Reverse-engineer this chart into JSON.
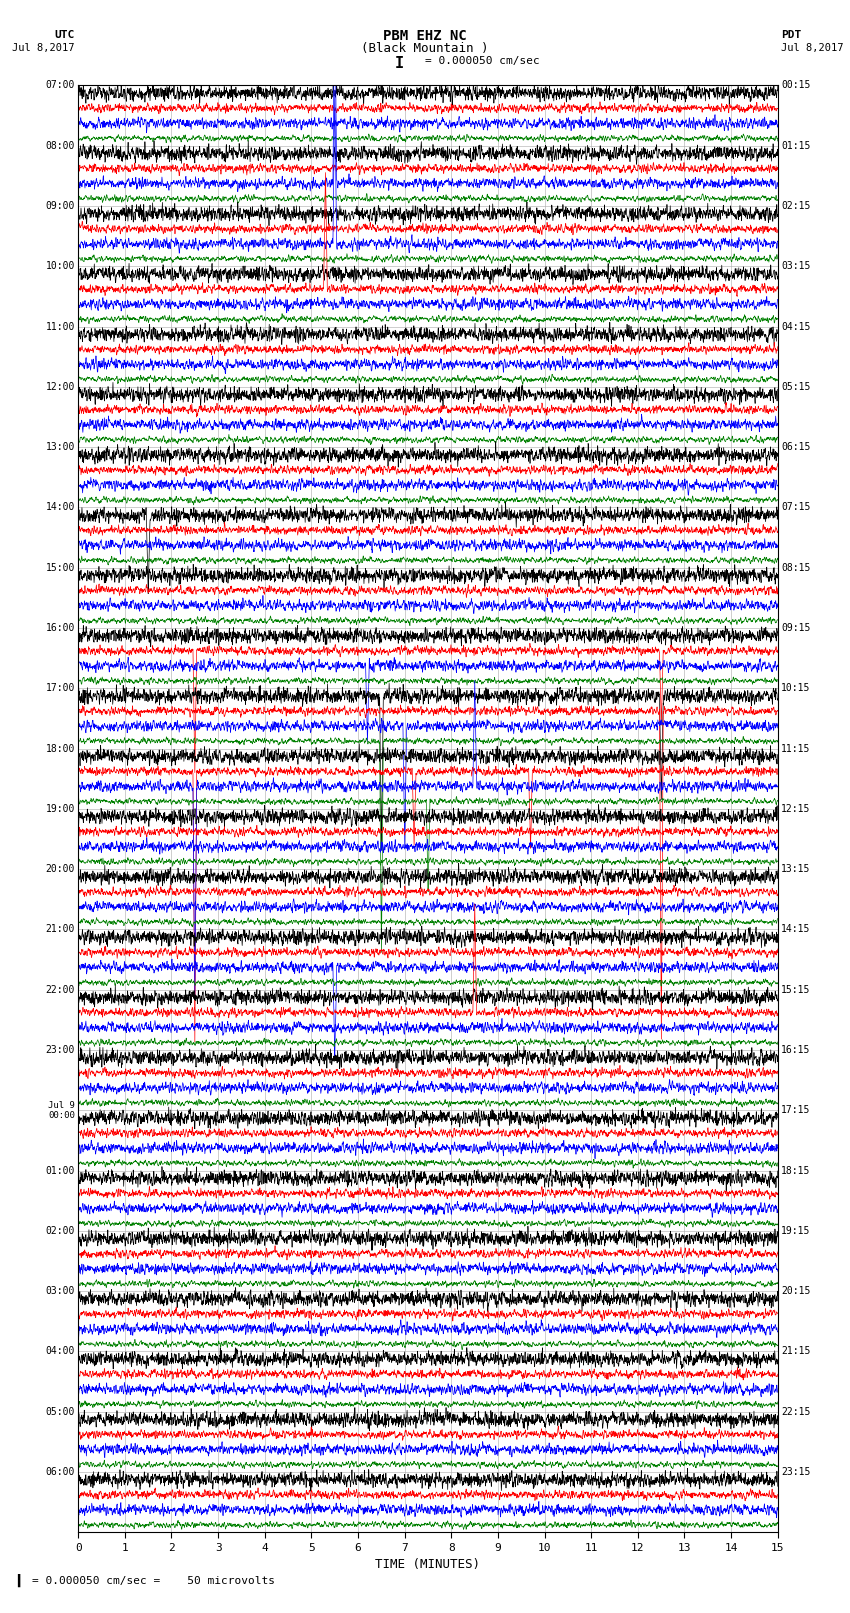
{
  "title_line1": "PBM EHZ NC",
  "title_line2": "(Black Mountain )",
  "title_line3": "I = 0.000050 cm/sec",
  "label_utc": "UTC",
  "label_pdt": "PDT",
  "date_left": "Jul 8,2017",
  "date_right": "Jul 8,2017",
  "xlabel": "TIME (MINUTES)",
  "footer": "= 0.000050 cm/sec =    50 microvolts",
  "xmin": 0,
  "xmax": 15,
  "xticks": [
    0,
    1,
    2,
    3,
    4,
    5,
    6,
    7,
    8,
    9,
    10,
    11,
    12,
    13,
    14,
    15
  ],
  "bg_color": "#ffffff",
  "trace_colors": [
    "black",
    "red",
    "blue",
    "green"
  ],
  "utc_times": [
    "07:00",
    "08:00",
    "09:00",
    "10:00",
    "11:00",
    "12:00",
    "13:00",
    "14:00",
    "15:00",
    "16:00",
    "17:00",
    "18:00",
    "19:00",
    "20:00",
    "21:00",
    "22:00",
    "23:00",
    "Jul 9\n00:00",
    "01:00",
    "02:00",
    "03:00",
    "04:00",
    "05:00",
    "06:00"
  ],
  "pdt_times": [
    "00:15",
    "01:15",
    "02:15",
    "03:15",
    "04:15",
    "05:15",
    "06:15",
    "07:15",
    "08:15",
    "09:15",
    "10:15",
    "11:15",
    "12:15",
    "13:15",
    "14:15",
    "15:15",
    "16:15",
    "17:15",
    "18:15",
    "19:15",
    "20:15",
    "21:15",
    "22:15",
    "23:15"
  ],
  "num_hour_rows": 24,
  "traces_per_hour": 4,
  "noise_amps": [
    0.32,
    0.22,
    0.28,
    0.18
  ],
  "spike_events": [
    {
      "hour": 1,
      "color_idx": 2,
      "time": 5.5,
      "amplitude": 14.0,
      "direction": 1
    },
    {
      "hour": 2,
      "color_idx": 2,
      "time": 5.5,
      "amplitude": 10.0,
      "direction": 1
    },
    {
      "hour": 3,
      "color_idx": 1,
      "time": 5.3,
      "amplitude": 8.0,
      "direction": 1
    },
    {
      "hour": 7,
      "color_idx": 0,
      "time": 1.5,
      "amplitude": -5.0,
      "direction": -1
    },
    {
      "hour": 9,
      "color_idx": 1,
      "time": 2.5,
      "amplitude": -8.0,
      "direction": -1
    },
    {
      "hour": 9,
      "color_idx": 2,
      "time": 6.2,
      "amplitude": -5.0,
      "direction": -1
    },
    {
      "hour": 9,
      "color_idx": 1,
      "time": 12.5,
      "amplitude": -5.0,
      "direction": -1
    },
    {
      "hour": 10,
      "color_idx": 3,
      "time": 6.5,
      "amplitude": -14.0,
      "direction": -1
    },
    {
      "hour": 10,
      "color_idx": 0,
      "time": 6.5,
      "amplitude": -10.0,
      "direction": -1
    },
    {
      "hour": 10,
      "color_idx": 2,
      "time": 7.0,
      "amplitude": -8.0,
      "direction": -1
    },
    {
      "hour": 11,
      "color_idx": 1,
      "time": 2.5,
      "amplitude": -18.0,
      "direction": -1
    },
    {
      "hour": 11,
      "color_idx": 2,
      "time": 2.5,
      "amplitude": -14.0,
      "direction": -1
    },
    {
      "hour": 11,
      "color_idx": 3,
      "time": 7.5,
      "amplitude": -6.0,
      "direction": -1
    },
    {
      "hour": 11,
      "color_idx": 1,
      "time": 7.2,
      "amplitude": -5.0,
      "direction": -1
    },
    {
      "hour": 11,
      "color_idx": 2,
      "time": 8.5,
      "amplitude": 7.0,
      "direction": 1
    },
    {
      "hour": 11,
      "color_idx": 1,
      "time": 9.7,
      "amplitude": -5.0,
      "direction": -1
    },
    {
      "hour": 10,
      "color_idx": 1,
      "time": 12.5,
      "amplitude": -22.0,
      "direction": -1
    },
    {
      "hour": 10,
      "color_idx": 0,
      "time": 12.5,
      "amplitude": -7.0,
      "direction": -1
    },
    {
      "hour": 14,
      "color_idx": 2,
      "time": 5.5,
      "amplitude": -6.0,
      "direction": -1
    },
    {
      "hour": 15,
      "color_idx": 1,
      "time": 8.5,
      "amplitude": 7.0,
      "direction": 1
    }
  ]
}
